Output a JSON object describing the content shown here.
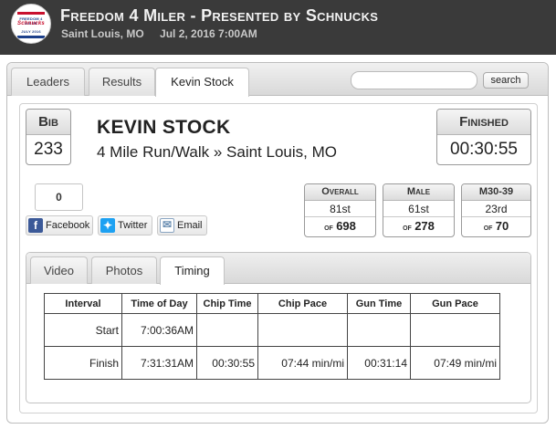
{
  "header": {
    "title": "Freedom 4 Miler - Presented by Schnucks",
    "location": "Saint Louis, MO",
    "date_time": "Jul 2, 2016 7:00AM",
    "logo": {
      "icon": "race-logo-icon",
      "lines": [
        "FREEDOM 4 MILER",
        "Schnucks",
        "JULY 2016"
      ]
    }
  },
  "tabs": [
    {
      "label": "Leaders"
    },
    {
      "label": "Results"
    },
    {
      "label": "Kevin Stock",
      "active": true
    }
  ],
  "search": {
    "button_label": "search",
    "value": ""
  },
  "runner": {
    "bib_label": "Bib",
    "bib": "233",
    "name": "KEVIN STOCK",
    "race": "4 Mile Run/Walk » Saint Louis, MO",
    "finished_label": "Finished",
    "finish_time": "00:30:55"
  },
  "social": {
    "count": "0",
    "buttons": [
      {
        "label": "Facebook",
        "icon": "facebook-icon",
        "color": "#3b5998"
      },
      {
        "label": "Twitter",
        "icon": "twitter-icon",
        "color": "#1da1f2"
      },
      {
        "label": "Email",
        "icon": "email-icon",
        "color": "#6b8fb3"
      }
    ]
  },
  "stats": [
    {
      "label": "Overall",
      "place": "81st",
      "of_label": "of",
      "total": "698"
    },
    {
      "label": "Male",
      "place": "61st",
      "of_label": "of",
      "total": "278"
    },
    {
      "label": "M30-39",
      "place": "23rd",
      "of_label": "of",
      "total": "70"
    }
  ],
  "detail_tabs": [
    {
      "label": "Video"
    },
    {
      "label": "Photos"
    },
    {
      "label": "Timing",
      "active": true
    }
  ],
  "timing": {
    "columns": [
      "Interval",
      "Time of Day",
      "Chip Time",
      "Chip Pace",
      "Gun Time",
      "Gun Pace"
    ],
    "rows": [
      [
        "Start",
        "7:00:36AM",
        "",
        "",
        "",
        ""
      ],
      [
        "Finish",
        "7:31:31AM",
        "00:30:55",
        "07:44 min/mi",
        "00:31:14",
        "07:49 min/mi"
      ]
    ]
  }
}
